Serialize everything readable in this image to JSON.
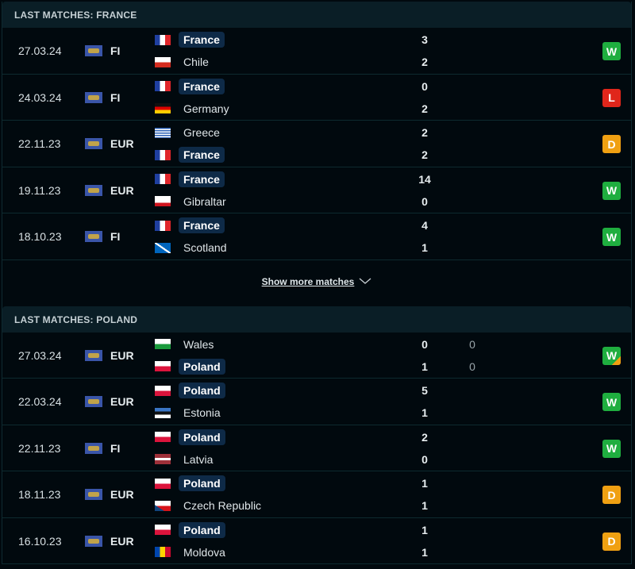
{
  "colors": {
    "W": "#1fae3f",
    "L": "#e0261b",
    "D": "#f0a012",
    "header_bg": "#0a1e26",
    "highlight": "#0e2a47"
  },
  "sections": [
    {
      "title": "LAST MATCHES: FRANCE",
      "matches": [
        {
          "date": "27.03.24",
          "competition": "FI",
          "home": {
            "name": "France",
            "flag": "france",
            "highlight": true
          },
          "away": {
            "name": "Chile",
            "flag": "chile",
            "highlight": false
          },
          "home_score": "3",
          "away_score": "2",
          "result": "W"
        },
        {
          "date": "24.03.24",
          "competition": "FI",
          "home": {
            "name": "France",
            "flag": "france",
            "highlight": true
          },
          "away": {
            "name": "Germany",
            "flag": "germany",
            "highlight": false
          },
          "home_score": "0",
          "away_score": "2",
          "result": "L"
        },
        {
          "date": "22.11.23",
          "competition": "EUR",
          "home": {
            "name": "Greece",
            "flag": "greece",
            "highlight": false
          },
          "away": {
            "name": "France",
            "flag": "france",
            "highlight": true
          },
          "home_score": "2",
          "away_score": "2",
          "result": "D"
        },
        {
          "date": "19.11.23",
          "competition": "EUR",
          "home": {
            "name": "France",
            "flag": "france",
            "highlight": true
          },
          "away": {
            "name": "Gibraltar",
            "flag": "gibraltar",
            "highlight": false
          },
          "home_score": "14",
          "away_score": "0",
          "result": "W"
        },
        {
          "date": "18.10.23",
          "competition": "FI",
          "home": {
            "name": "France",
            "flag": "france",
            "highlight": true
          },
          "away": {
            "name": "Scotland",
            "flag": "scotland",
            "highlight": false
          },
          "home_score": "4",
          "away_score": "1",
          "result": "W"
        }
      ],
      "show_more": "Show more matches"
    },
    {
      "title": "LAST MATCHES: POLAND",
      "matches": [
        {
          "date": "27.03.24",
          "competition": "EUR",
          "home": {
            "name": "Wales",
            "flag": "wales",
            "highlight": false
          },
          "away": {
            "name": "Poland",
            "flag": "poland",
            "highlight": true
          },
          "home_score": "0",
          "away_score": "1",
          "home_sub": "0",
          "away_sub": "0",
          "result": "W",
          "penalty_win": true
        },
        {
          "date": "22.03.24",
          "competition": "EUR",
          "home": {
            "name": "Poland",
            "flag": "poland",
            "highlight": true
          },
          "away": {
            "name": "Estonia",
            "flag": "estonia",
            "highlight": false
          },
          "home_score": "5",
          "away_score": "1",
          "result": "W"
        },
        {
          "date": "22.11.23",
          "competition": "FI",
          "home": {
            "name": "Poland",
            "flag": "poland",
            "highlight": true
          },
          "away": {
            "name": "Latvia",
            "flag": "latvia",
            "highlight": false
          },
          "home_score": "2",
          "away_score": "0",
          "result": "W"
        },
        {
          "date": "18.11.23",
          "competition": "EUR",
          "home": {
            "name": "Poland",
            "flag": "poland",
            "highlight": true
          },
          "away": {
            "name": "Czech Republic",
            "flag": "czech",
            "highlight": false
          },
          "home_score": "1",
          "away_score": "1",
          "result": "D"
        },
        {
          "date": "16.10.23",
          "competition": "EUR",
          "home": {
            "name": "Poland",
            "flag": "poland",
            "highlight": true
          },
          "away": {
            "name": "Moldova",
            "flag": "moldova",
            "highlight": false
          },
          "home_score": "1",
          "away_score": "1",
          "result": "D"
        }
      ]
    }
  ]
}
